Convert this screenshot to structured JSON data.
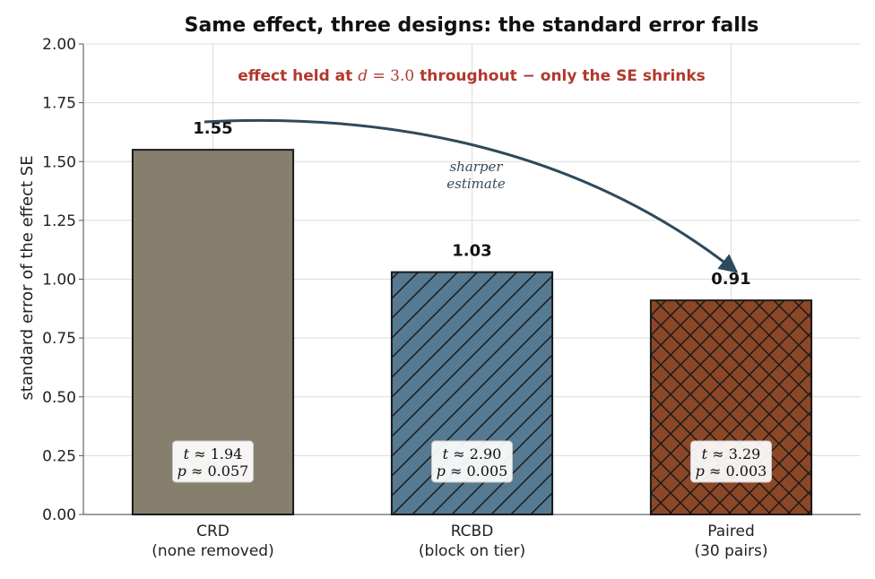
{
  "chart_data": {
    "type": "bar",
    "title": "Same effect, three designs: the standard error falls",
    "ylabel": "standard error of the effect  SE",
    "xlabel": "",
    "ylim": [
      0,
      2.0
    ],
    "yticks": [
      "0.00",
      "0.25",
      "0.50",
      "0.75",
      "1.00",
      "1.25",
      "1.50",
      "1.75",
      "2.00"
    ],
    "grid": true,
    "categories": [
      {
        "line1": "CRD",
        "line2": "(none removed)"
      },
      {
        "line1": "RCBD",
        "line2": "(block on tier)"
      },
      {
        "line1": "Paired",
        "line2": "(30 pairs)"
      }
    ],
    "values": [
      1.55,
      1.03,
      0.91
    ],
    "value_labels": [
      "1.55",
      "1.03",
      "0.91"
    ],
    "bar_colors": [
      "#877f6e",
      "#557a91",
      "#8b4726"
    ],
    "bar_patterns": [
      "none",
      "diagonal",
      "crosshatch"
    ],
    "stats": [
      {
        "t": "1.94",
        "p": "0.057"
      },
      {
        "t": "2.90",
        "p": "0.005"
      },
      {
        "t": "3.29",
        "p": "0.003"
      }
    ],
    "note": {
      "prefix": "effect held at ",
      "symbol": "d",
      "middle": " = 3.0",
      "suffix": " throughout − only the SE shrinks",
      "color": "#b03a2e"
    },
    "arrow_annotation": {
      "line1": "sharper",
      "line2": "estimate",
      "color": "#2e4a5c"
    }
  }
}
